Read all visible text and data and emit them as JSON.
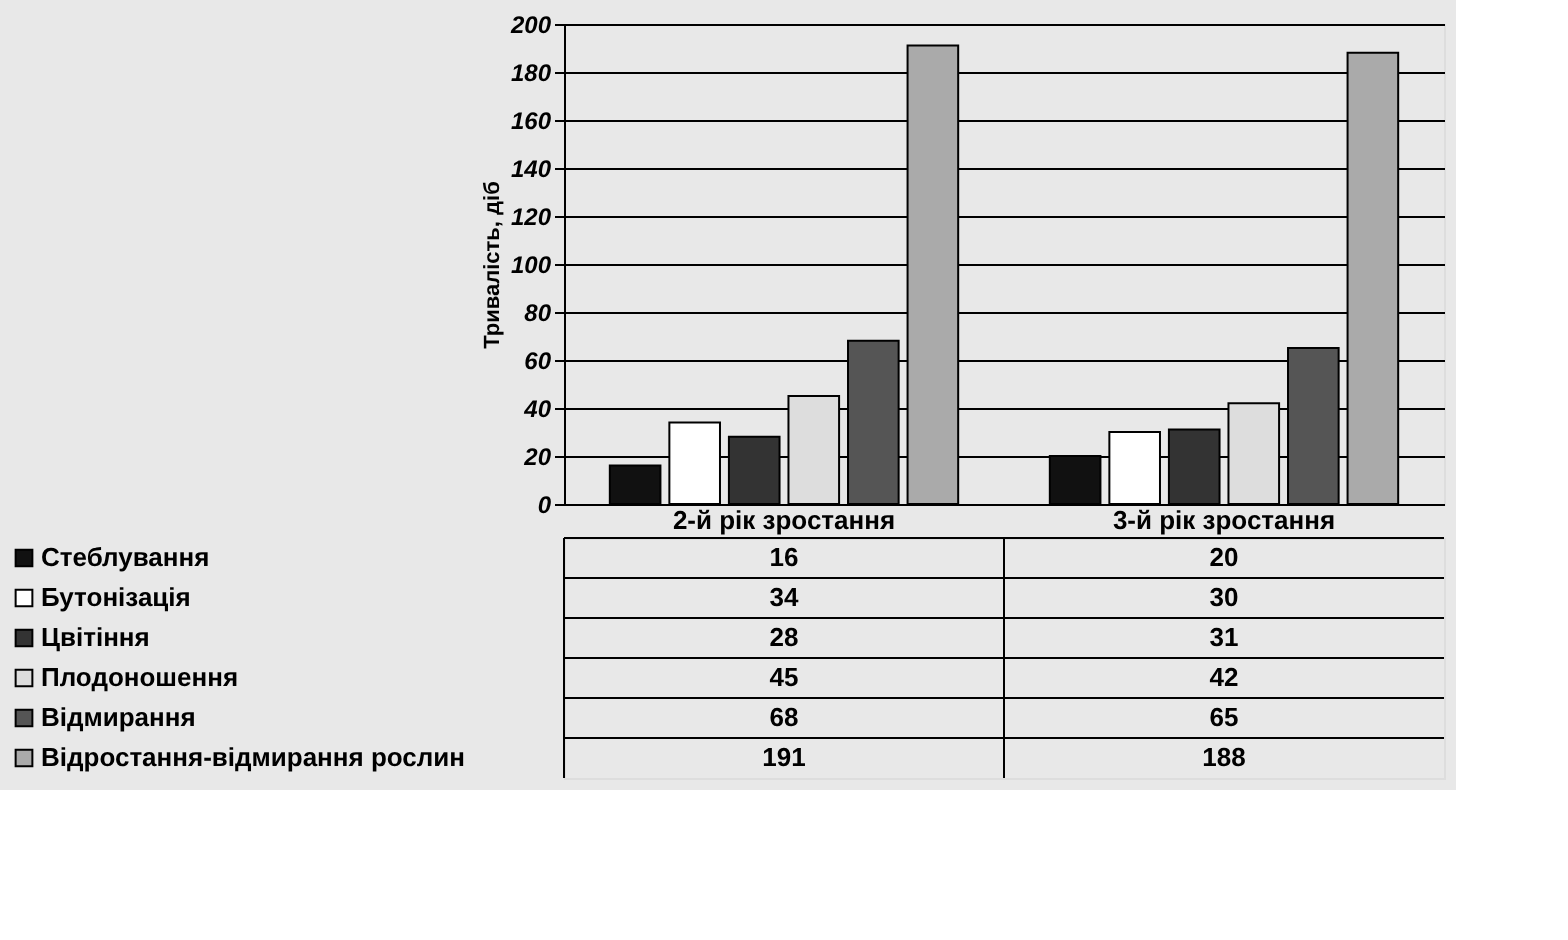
{
  "chart_data": {
    "type": "bar",
    "ylabel": "Тривалість, діб",
    "categories": [
      "2-й рік зростання",
      "3-й рік зростання"
    ],
    "series": [
      {
        "name": "Стеблування",
        "color": "#111111",
        "values": [
          16,
          20
        ]
      },
      {
        "name": "Бутонізація",
        "color": "#ffffff",
        "values": [
          34,
          30
        ]
      },
      {
        "name": "Цвітіння",
        "color": "#333333",
        "values": [
          28,
          31
        ]
      },
      {
        "name": "Плодоношення",
        "color": "#dddddd",
        "values": [
          45,
          42
        ]
      },
      {
        "name": "Відмирання",
        "color": "#555555",
        "values": [
          68,
          65
        ]
      },
      {
        "name": "Відростання-відмирання рослин",
        "color": "#aaaaaa",
        "values": [
          191,
          188
        ]
      }
    ],
    "ylim": [
      0,
      200
    ],
    "yticks": [
      0,
      20,
      40,
      60,
      80,
      100,
      120,
      140,
      160,
      180,
      200
    ],
    "grid": "y",
    "data_labels": true,
    "legend": "bottom"
  }
}
